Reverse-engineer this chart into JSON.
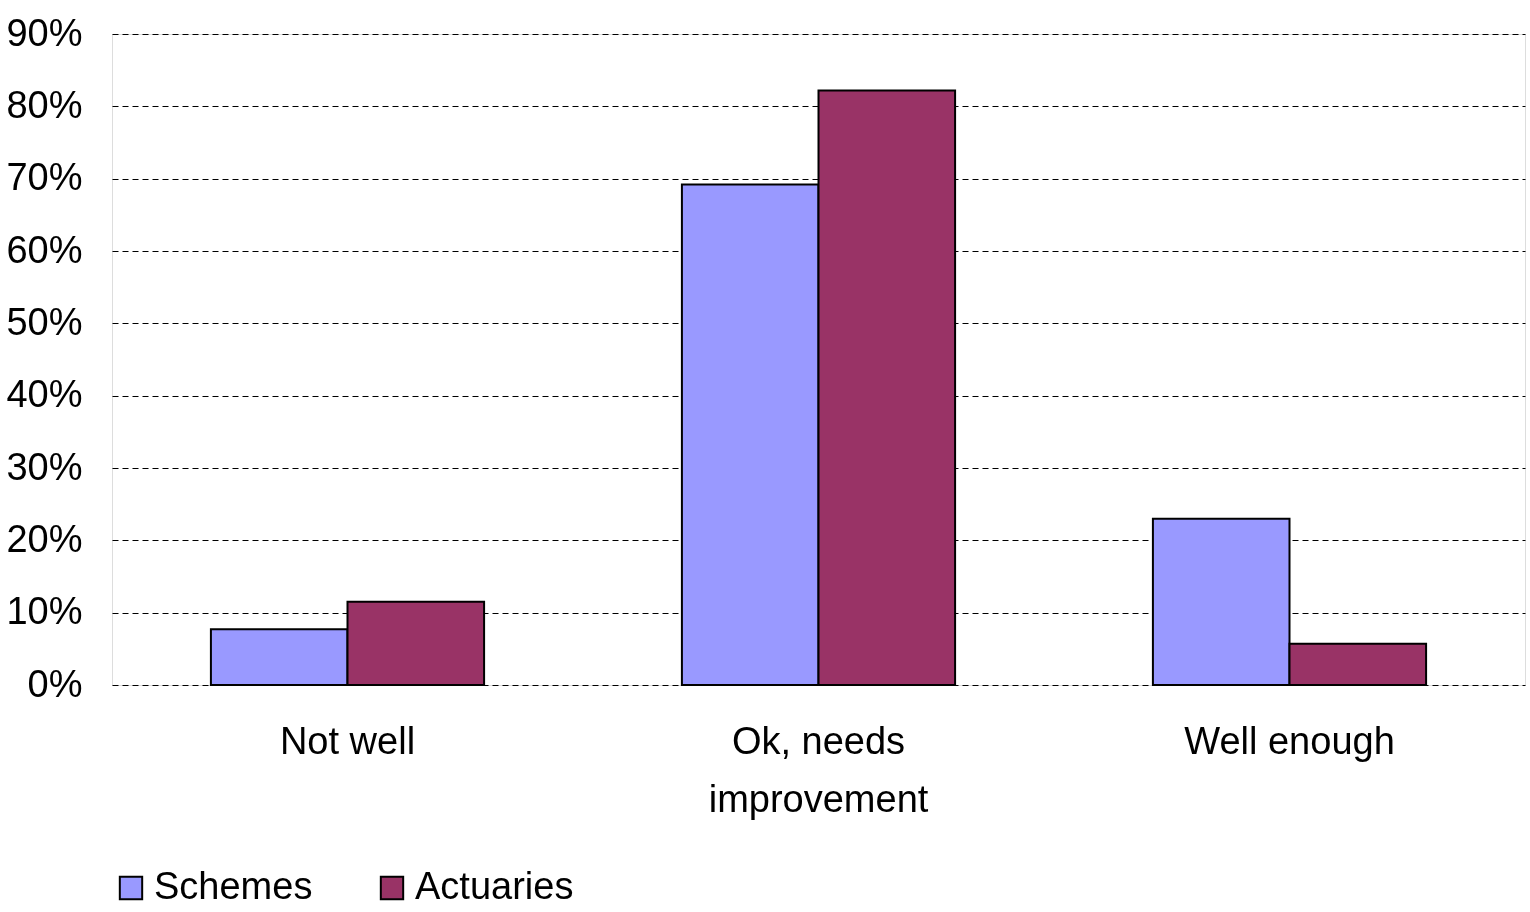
{
  "chart_data": {
    "type": "bar",
    "categories": [
      "Not well",
      "Ok, needs improvement",
      "Well enough"
    ],
    "series": [
      {
        "name": "Schemes",
        "color": "#9999ff",
        "values": [
          7.7,
          69.2,
          23.0
        ]
      },
      {
        "name": "Actuaries",
        "color": "#993366",
        "values": [
          11.5,
          82.2,
          5.7
        ]
      }
    ],
    "ylim": [
      0,
      90
    ],
    "yticks": [
      {
        "value": 0,
        "label": "0%"
      },
      {
        "value": 10,
        "label": "10%"
      },
      {
        "value": 20,
        "label": "20%"
      },
      {
        "value": 30,
        "label": "30%"
      },
      {
        "value": 40,
        "label": "40%"
      },
      {
        "value": 50,
        "label": "50%"
      },
      {
        "value": 60,
        "label": "60%"
      },
      {
        "value": 70,
        "label": "70%"
      },
      {
        "value": 80,
        "label": "80%"
      },
      {
        "value": 90,
        "label": "90%"
      }
    ],
    "grid": "y",
    "legend": "bottom"
  }
}
